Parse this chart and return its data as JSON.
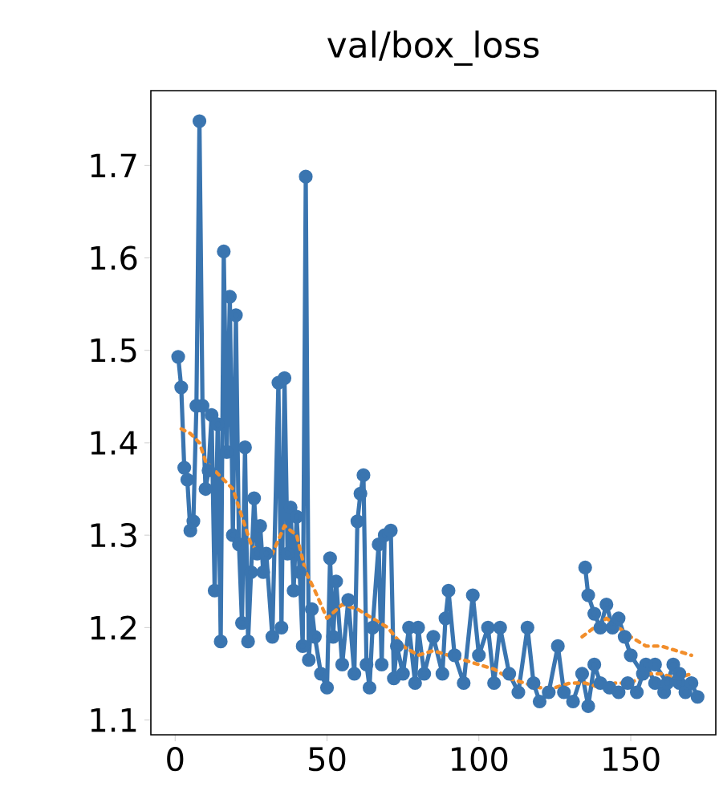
{
  "chart_data": {
    "type": "line",
    "title": "val/box_loss",
    "xlim": [
      -8,
      178
    ],
    "ylim": [
      1.084,
      1.781
    ],
    "xticks": [
      0,
      50,
      100,
      150
    ],
    "yticks": [
      1.1,
      1.2,
      1.3,
      1.4,
      1.5,
      1.6,
      1.7
    ],
    "marker": "circle",
    "line_style": "solid",
    "series": [
      {
        "color": "#3a75b0",
        "x": [
          1,
          2,
          3,
          4,
          5,
          6,
          7,
          8,
          9,
          10,
          11,
          12,
          13,
          14,
          15,
          16,
          17,
          18,
          19,
          20,
          21,
          22,
          23,
          24,
          25,
          26,
          27,
          28,
          29,
          30,
          32,
          34,
          35,
          36,
          37,
          38,
          39,
          40,
          41,
          42,
          43,
          44,
          45,
          46,
          48,
          50,
          51,
          52,
          53,
          55,
          57,
          59,
          60,
          61,
          62,
          63,
          64,
          65,
          67,
          68,
          69,
          71,
          72,
          73,
          75,
          77,
          79,
          80,
          82,
          85,
          88,
          89,
          90,
          92,
          95,
          98,
          100,
          103,
          105,
          107,
          110,
          113,
          116,
          118,
          120,
          123,
          126,
          128,
          131,
          134,
          136,
          138,
          140,
          143,
          146,
          149,
          152,
          155,
          158,
          161,
          164,
          166,
          168,
          170,
          172
        ],
        "values": [
          1.493,
          1.46,
          1.373,
          1.36,
          1.305,
          1.315,
          1.44,
          1.748,
          1.44,
          1.35,
          1.37,
          1.43,
          1.24,
          1.42,
          1.185,
          1.607,
          1.39,
          1.558,
          1.3,
          1.538,
          1.29,
          1.205,
          1.395,
          1.185,
          1.26,
          1.34,
          1.28,
          1.31,
          1.26,
          1.28,
          1.19,
          1.465,
          1.2,
          1.47,
          1.28,
          1.33,
          1.24,
          1.32,
          1.26,
          1.18,
          1.688,
          1.165,
          1.22,
          1.19,
          1.15,
          1.135,
          1.275,
          1.19,
          1.25,
          1.16,
          1.23,
          1.15,
          1.315,
          1.345,
          1.365,
          1.16,
          1.135,
          1.2,
          1.29,
          1.16,
          1.3,
          1.305,
          1.145,
          1.18,
          1.15,
          1.2,
          1.14,
          1.2,
          1.15,
          1.19,
          1.15,
          1.21,
          1.24,
          1.17,
          1.14,
          1.235,
          1.17,
          1.2,
          1.14,
          1.2,
          1.15,
          1.13,
          1.2,
          1.14,
          1.12,
          1.13,
          1.18,
          1.13,
          1.12,
          1.15,
          1.115,
          1.16,
          1.14,
          1.135,
          1.13,
          1.14,
          1.13,
          1.16,
          1.14,
          1.13,
          1.16,
          1.14,
          1.13,
          1.14,
          1.125
        ]
      },
      {
        "color": "#3a75b0",
        "x": [
          135,
          136,
          138,
          140,
          142,
          144,
          146,
          148,
          150,
          154,
          158,
          162,
          166
        ],
        "values": [
          1.265,
          1.235,
          1.215,
          1.2,
          1.225,
          1.2,
          1.21,
          1.19,
          1.17,
          1.15,
          1.16,
          1.14,
          1.15
        ]
      },
      {
        "color": "#f28e2b",
        "type": "line",
        "marker": "none",
        "line_style": "dotted",
        "x": [
          2,
          5,
          8,
          10,
          13,
          16,
          19,
          22,
          25,
          28,
          32,
          36,
          40,
          43,
          46,
          50,
          55,
          60,
          65,
          70,
          75,
          80,
          85,
          90,
          95,
          100,
          105,
          110,
          115,
          120,
          125,
          130,
          135,
          140,
          145,
          150,
          155,
          160,
          165,
          170
        ],
        "values": [
          1.415,
          1.41,
          1.4,
          1.38,
          1.37,
          1.36,
          1.35,
          1.32,
          1.29,
          1.28,
          1.28,
          1.31,
          1.3,
          1.26,
          1.24,
          1.21,
          1.225,
          1.22,
          1.21,
          1.2,
          1.18,
          1.17,
          1.175,
          1.17,
          1.165,
          1.16,
          1.155,
          1.145,
          1.14,
          1.135,
          1.135,
          1.14,
          1.14,
          1.135,
          1.14,
          1.14,
          1.15,
          1.15,
          1.145,
          1.15
        ]
      },
      {
        "color": "#f28e2b",
        "type": "line",
        "marker": "none",
        "line_style": "dotted",
        "x": [
          134,
          138,
          142,
          146,
          150,
          155,
          160,
          165,
          170
        ],
        "values": [
          1.19,
          1.2,
          1.21,
          1.2,
          1.19,
          1.18,
          1.18,
          1.175,
          1.17
        ]
      }
    ]
  }
}
